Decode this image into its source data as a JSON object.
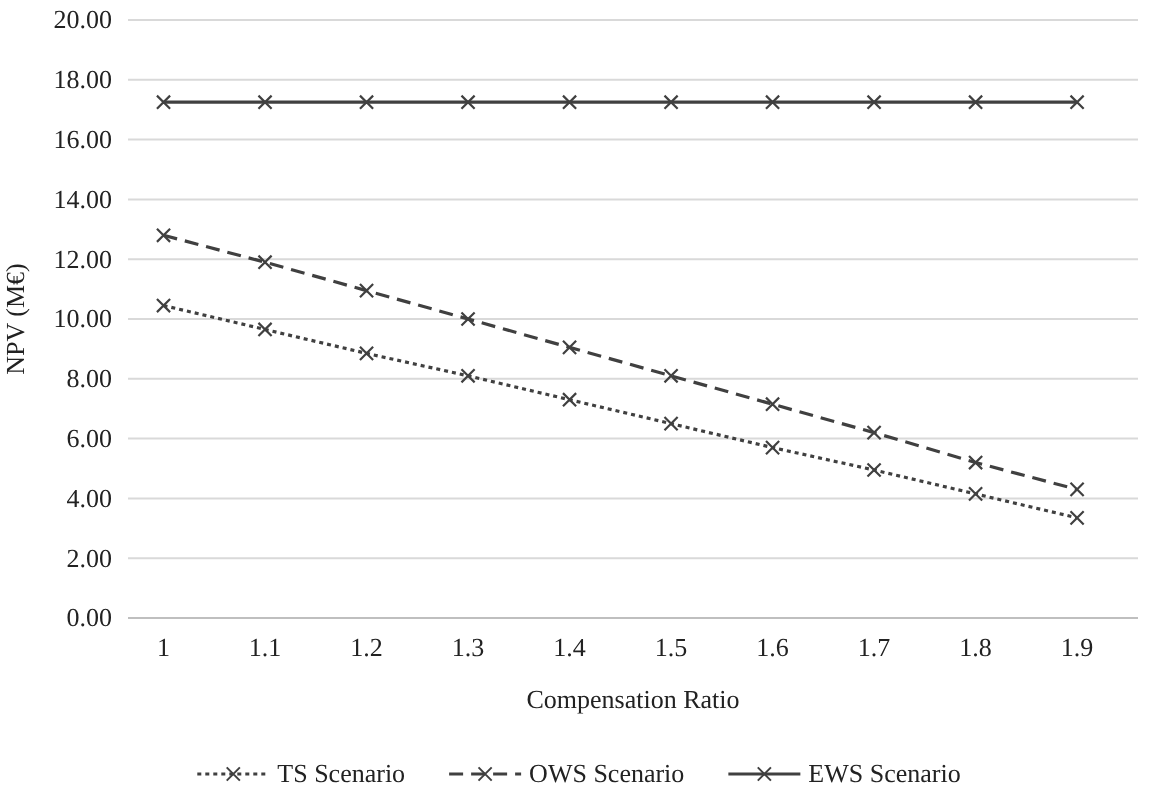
{
  "chart_data": {
    "type": "line",
    "xlabel": "Compensation Ratio",
    "ylabel": "NPV (M€)",
    "x": [
      1,
      1.1,
      1.2,
      1.3,
      1.4,
      1.5,
      1.6,
      1.7,
      1.8,
      1.9
    ],
    "xlim": [
      0.965,
      1.96
    ],
    "xticks": [
      1,
      1.1,
      1.2,
      1.3,
      1.4,
      1.5,
      1.6,
      1.7,
      1.8,
      1.9
    ],
    "ylim": [
      0,
      20
    ],
    "yticks": [
      {
        "value": 0,
        "label": "0.00"
      },
      {
        "value": 2,
        "label": "2.00"
      },
      {
        "value": 4,
        "label": "4.00"
      },
      {
        "value": 6,
        "label": "6.00"
      },
      {
        "value": 8,
        "label": "8.00"
      },
      {
        "value": 10,
        "label": "10.00"
      },
      {
        "value": 12,
        "label": "12.00"
      },
      {
        "value": 14,
        "label": "14.00"
      },
      {
        "value": 16,
        "label": "16.00"
      },
      {
        "value": 18,
        "label": "18.00"
      },
      {
        "value": 20,
        "label": "20.00"
      }
    ],
    "grid": "y",
    "legend": "bottom",
    "marker": "cross",
    "series": [
      {
        "name": "TS Scenario",
        "color": "#404040",
        "line_style": "dotted",
        "values": [
          10.45,
          9.65,
          8.85,
          8.1,
          7.3,
          6.5,
          5.7,
          4.95,
          4.15,
          3.35
        ]
      },
      {
        "name": "OWS Scenario",
        "color": "#404040",
        "line_style": "dashed",
        "values": [
          12.8,
          11.9,
          10.95,
          10.0,
          9.05,
          8.1,
          7.15,
          6.2,
          5.2,
          4.3
        ]
      },
      {
        "name": "EWS Scenario",
        "color": "#404040",
        "line_style": "solid",
        "values": [
          17.25,
          17.25,
          17.25,
          17.25,
          17.25,
          17.25,
          17.25,
          17.25,
          17.25,
          17.25
        ]
      }
    ]
  }
}
